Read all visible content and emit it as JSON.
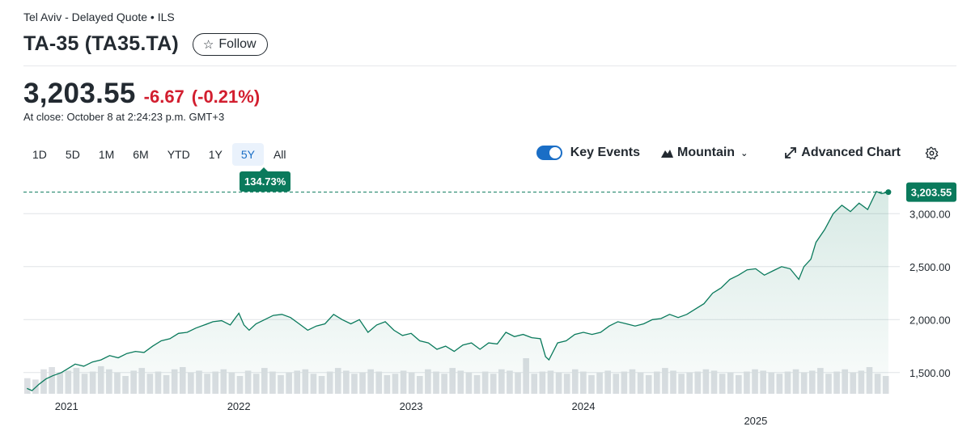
{
  "header": {
    "exchange_line": "Tel Aviv - Delayed Quote • ILS",
    "title": "TA-35 (TA35.TA)",
    "follow_label": "Follow"
  },
  "quote": {
    "price": "3,203.55",
    "change": "-6.67",
    "change_pct": "(-0.21%)",
    "close_time": "At close: October 8 at 2:24:23 p.m. GMT+3"
  },
  "ranges": [
    {
      "label": "1D",
      "active": false
    },
    {
      "label": "5D",
      "active": false
    },
    {
      "label": "1M",
      "active": false
    },
    {
      "label": "6M",
      "active": false
    },
    {
      "label": "YTD",
      "active": false
    },
    {
      "label": "1Y",
      "active": false
    },
    {
      "label": "5Y",
      "active": true
    },
    {
      "label": "All",
      "active": false
    }
  ],
  "performance_badge": "134.73%",
  "toolbar": {
    "key_events_label": "Key Events",
    "key_events_on": true,
    "chart_type_label": "Mountain",
    "advanced_chart_label": "Advanced Chart",
    "icons": [
      "mountain-icon",
      "expand-icon",
      "gear-icon"
    ]
  },
  "colors": {
    "line": "#0a7a5c",
    "area": "#e3f3ec",
    "negative": "#d21e2f",
    "active_range": "#1a6ec6"
  },
  "chart_data": {
    "type": "area",
    "title": "",
    "xlabel": "",
    "ylabel": "",
    "ylim": [
      1300,
      3300
    ],
    "xlim": [
      2020.75,
      2025.78
    ],
    "y_ticks": [
      1500,
      2000,
      2500,
      3000
    ],
    "y_tick_labels": [
      "1,500.00",
      "2,000.00",
      "2,500.00",
      "3,000.00"
    ],
    "x_ticks": [
      2021,
      2022,
      2023,
      2024,
      2025
    ],
    "x_tick_labels": [
      "2021",
      "2022",
      "2023",
      "2024",
      "2025"
    ],
    "grid": true,
    "legend": "none",
    "last_value": 3203.55,
    "last_value_label": "3,203.55",
    "series": [
      {
        "x": [
          2020.77,
          2020.8,
          2020.84,
          2020.88,
          2020.92,
          2020.97,
          2021.0,
          2021.05,
          2021.1,
          2021.15,
          2021.2,
          2021.25,
          2021.3,
          2021.35,
          2021.4,
          2021.45,
          2021.5,
          2021.55,
          2021.6,
          2021.65,
          2021.7,
          2021.75,
          2021.8,
          2021.85,
          2021.9,
          2021.95,
          2022.0,
          2022.03,
          2022.06,
          2022.1,
          2022.15,
          2022.2,
          2022.25,
          2022.3,
          2022.35,
          2022.4,
          2022.45,
          2022.5,
          2022.55,
          2022.6,
          2022.65,
          2022.7,
          2022.75,
          2022.8,
          2022.85,
          2022.9,
          2022.95,
          2023.0,
          2023.05,
          2023.1,
          2023.15,
          2023.2,
          2023.25,
          2023.3,
          2023.35,
          2023.4,
          2023.45,
          2023.5,
          2023.55,
          2023.6,
          2023.65,
          2023.7,
          2023.75,
          2023.78,
          2023.8,
          2023.85,
          2023.9,
          2023.95,
          2024.0,
          2024.05,
          2024.1,
          2024.15,
          2024.2,
          2024.25,
          2024.3,
          2024.35,
          2024.4,
          2024.45,
          2024.5,
          2024.55,
          2024.6,
          2024.65,
          2024.7,
          2024.75,
          2024.8,
          2024.85,
          2024.9,
          2024.95,
          2025.0,
          2025.05,
          2025.1,
          2025.15,
          2025.2,
          2025.25,
          2025.28,
          2025.32,
          2025.35,
          2025.4,
          2025.45,
          2025.5,
          2025.55,
          2025.6,
          2025.65,
          2025.7,
          2025.73,
          2025.77
        ],
        "y": [
          1350,
          1330,
          1390,
          1440,
          1470,
          1500,
          1530,
          1580,
          1560,
          1600,
          1620,
          1660,
          1640,
          1680,
          1700,
          1690,
          1750,
          1800,
          1820,
          1870,
          1880,
          1920,
          1950,
          1980,
          1990,
          1950,
          2060,
          1950,
          1900,
          1960,
          2000,
          2040,
          2050,
          2020,
          1960,
          1900,
          1940,
          1960,
          2050,
          2000,
          1960,
          2000,
          1880,
          1950,
          1980,
          1900,
          1850,
          1870,
          1800,
          1780,
          1720,
          1750,
          1700,
          1760,
          1780,
          1720,
          1780,
          1770,
          1880,
          1840,
          1860,
          1830,
          1820,
          1650,
          1620,
          1780,
          1800,
          1860,
          1880,
          1860,
          1880,
          1940,
          1980,
          1960,
          1940,
          1960,
          2000,
          2010,
          2050,
          2020,
          2050,
          2100,
          2150,
          2250,
          2300,
          2380,
          2420,
          2470,
          2480,
          2420,
          2460,
          2500,
          2480,
          2380,
          2500,
          2570,
          2730,
          2850,
          3000,
          3080,
          3020,
          3100,
          3040,
          3210,
          3190,
          3203.55
        ]
      }
    ],
    "volume": [
      35,
      32,
      55,
      60,
      48,
      52,
      58,
      45,
      50,
      62,
      55,
      48,
      40,
      52,
      58,
      45,
      50,
      42,
      55,
      60,
      48,
      52,
      45,
      50,
      55,
      48,
      40,
      52,
      45,
      58,
      50,
      42,
      48,
      52,
      55,
      45,
      40,
      50,
      58,
      52,
      45,
      48,
      55,
      50,
      42,
      45,
      52,
      48,
      40,
      55,
      50,
      45,
      58,
      52,
      48,
      42,
      50,
      45,
      55,
      52,
      48,
      80,
      45,
      50,
      52,
      48,
      45,
      55,
      50,
      42,
      48,
      52,
      45,
      50,
      55,
      48,
      42,
      50,
      58,
      52,
      45,
      48,
      50,
      55,
      52,
      45,
      48,
      42,
      50,
      55,
      52,
      48,
      45,
      50,
      55,
      48,
      52,
      58,
      45,
      50,
      55,
      48,
      52,
      60,
      45,
      40
    ]
  }
}
